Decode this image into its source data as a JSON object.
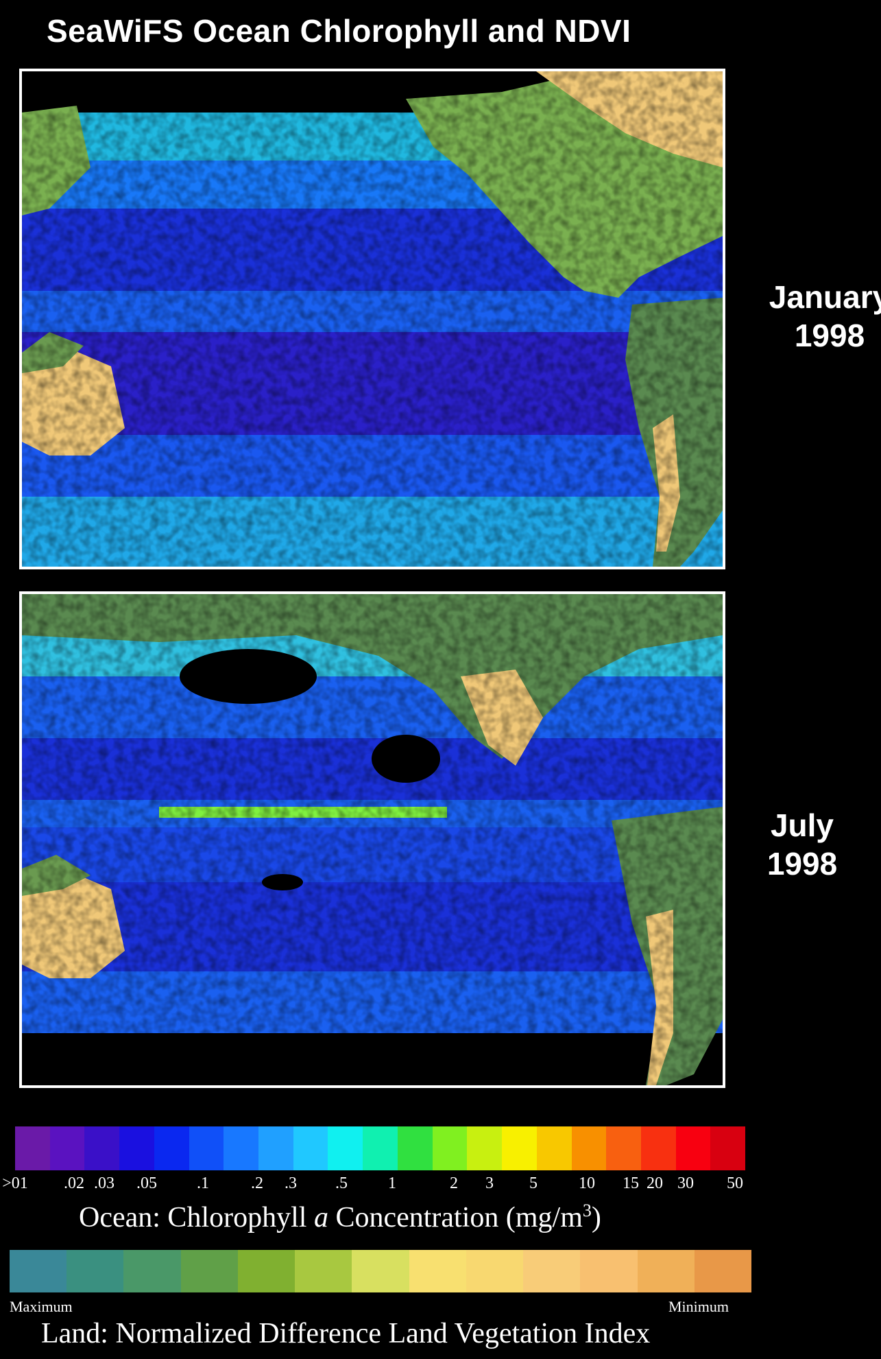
{
  "title": "SeaWiFS Ocean Chlorophyll and NDVI",
  "panels": {
    "january": {
      "date_line1": "January",
      "date_line2": "1998"
    },
    "july": {
      "date_line1": "July",
      "date_line2": "1998"
    }
  },
  "ocean_legend": {
    "caption_prefix": "Ocean:  Chlorophyll ",
    "caption_italic": "a",
    "caption_suffix": " Concentration (mg/m",
    "caption_sup": "3",
    "caption_end": ")",
    "ticks": [
      ">01",
      ".02",
      ".03",
      ".05",
      ".1",
      ".2",
      ".3",
      ".5",
      "1",
      "2",
      "3",
      "5",
      "10",
      "15",
      "20",
      "30",
      "50"
    ],
    "colors": [
      "#6a1aa8",
      "#5a12c0",
      "#3a10c8",
      "#1a10e0",
      "#0a28f0",
      "#1050f8",
      "#1878ff",
      "#20a0ff",
      "#20c8ff",
      "#10f0f0",
      "#10f0b0",
      "#30e040",
      "#80f020",
      "#c8f010",
      "#f8f000",
      "#f8c800",
      "#f89000",
      "#f86010",
      "#f83010",
      "#f80010",
      "#d80010"
    ]
  },
  "land_legend": {
    "caption": "Land:  Normalized Difference Land Vegetation Index",
    "max_label": "Maximum",
    "min_label": "Minimum",
    "colors": [
      "#3a8898",
      "#3a9080",
      "#4a9868",
      "#60a048",
      "#80b030",
      "#a8c840",
      "#d8e060",
      "#f8e070",
      "#f8d870",
      "#f8cc78",
      "#f8c070",
      "#f0b058",
      "#e89848"
    ]
  },
  "map_colors": {
    "ocean_low": "#2030d0",
    "ocean_mid": "#1070ff",
    "ocean_high": "#30e0e0",
    "land_veg": "#6a9a50",
    "land_desert": "#f0c878",
    "no_data": "#000000"
  }
}
